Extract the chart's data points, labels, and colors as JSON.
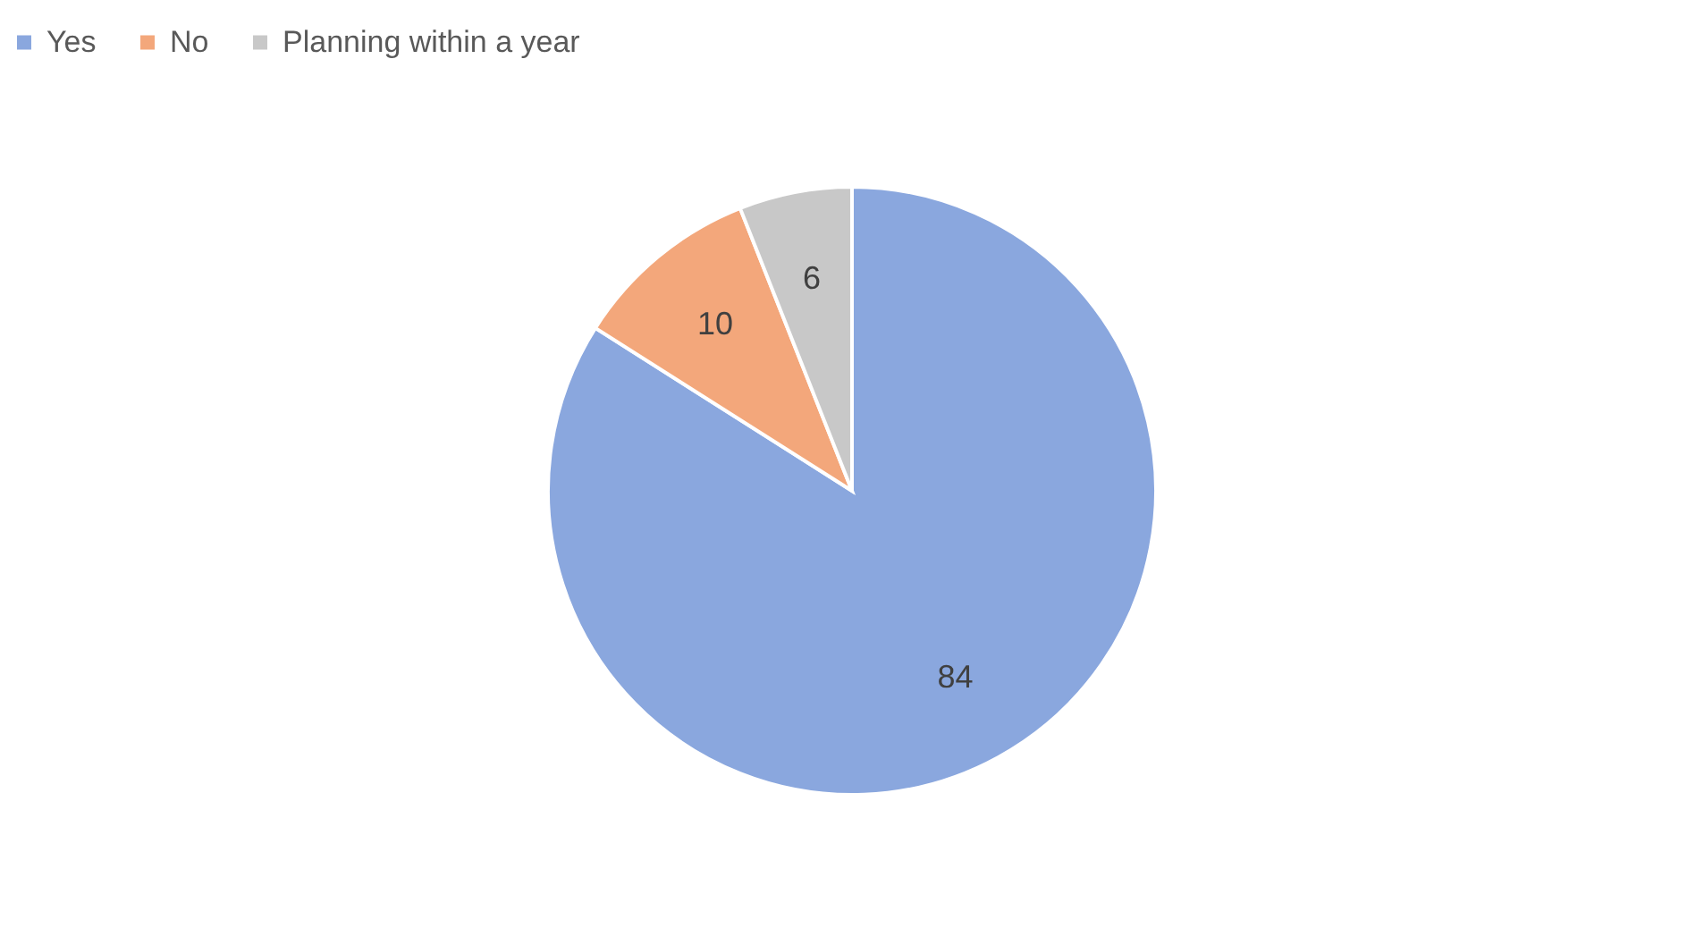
{
  "chart_data": {
    "type": "pie",
    "categories": [
      "Yes",
      "No",
      "Planning within a year"
    ],
    "values": [
      84,
      10,
      6
    ],
    "colors": [
      "#8aa7de",
      "#f3a77b",
      "#c8c8c8"
    ],
    "data_labels": true,
    "legend": "top"
  }
}
